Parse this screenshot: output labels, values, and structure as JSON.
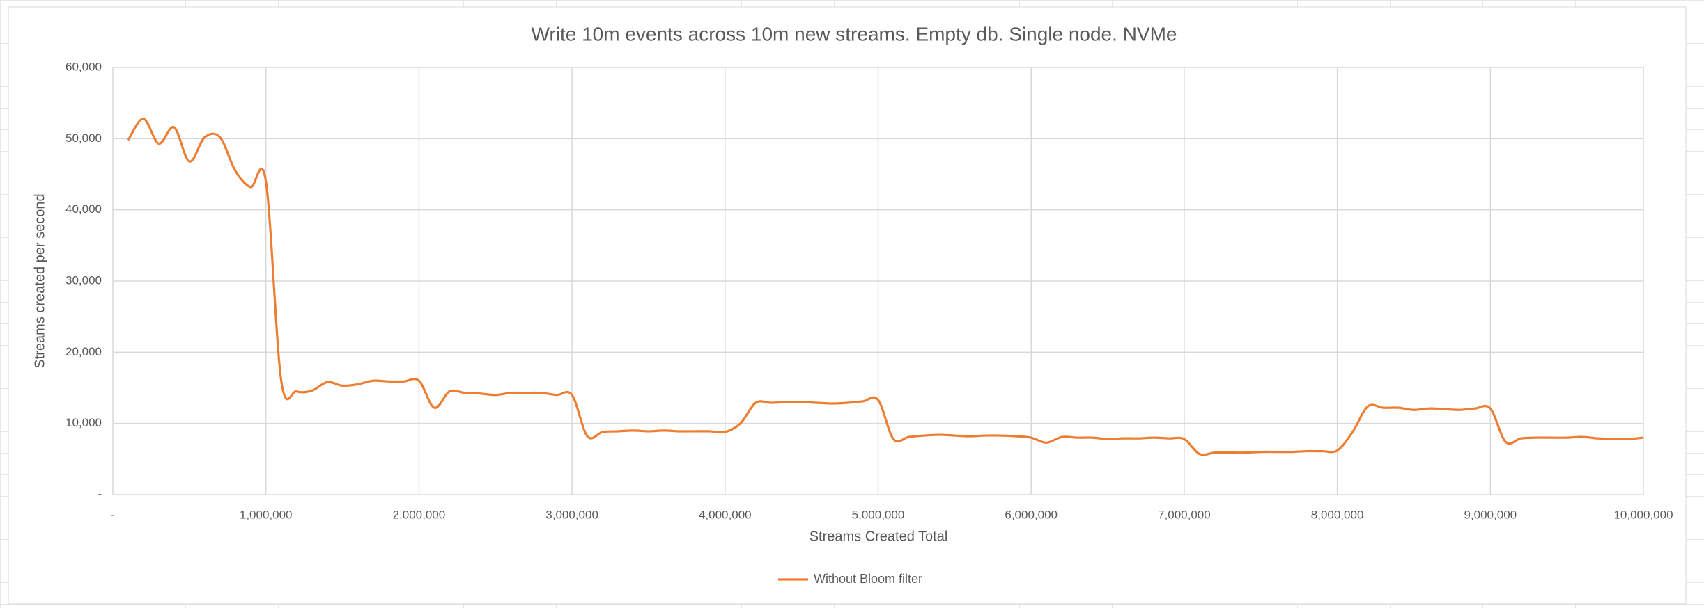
{
  "chart_data": {
    "type": "line",
    "title": "Write 10m events across 10m new streams. Empty db. Single node. NVMe",
    "x_label": "Streams Created Total",
    "y_label": "Streams created per second",
    "x": [
      100000,
      200000,
      300000,
      400000,
      500000,
      600000,
      700000,
      800000,
      900000,
      1000000,
      1100000,
      1200000,
      1300000,
      1400000,
      1500000,
      1600000,
      1700000,
      1800000,
      1900000,
      2000000,
      2100000,
      2200000,
      2300000,
      2400000,
      2500000,
      2600000,
      2700000,
      2800000,
      2900000,
      3000000,
      3100000,
      3200000,
      3300000,
      3400000,
      3500000,
      3600000,
      3700000,
      3800000,
      3900000,
      4000000,
      4100000,
      4200000,
      4300000,
      4400000,
      4500000,
      4600000,
      4700000,
      4800000,
      4900000,
      5000000,
      5100000,
      5200000,
      5300000,
      5400000,
      5500000,
      5600000,
      5700000,
      5800000,
      5900000,
      6000000,
      6100000,
      6200000,
      6300000,
      6400000,
      6500000,
      6600000,
      6700000,
      6800000,
      6900000,
      7000000,
      7100000,
      7200000,
      7300000,
      7400000,
      7500000,
      7600000,
      7700000,
      7800000,
      7900000,
      8000000,
      8100000,
      8200000,
      8300000,
      8400000,
      8500000,
      8600000,
      8700000,
      8800000,
      8900000,
      9000000,
      9100000,
      9200000,
      9300000,
      9400000,
      9500000,
      9600000,
      9700000,
      9800000,
      9900000,
      10000000
    ],
    "series": [
      {
        "name": "Without Bloom filter",
        "color": "#ed7d31",
        "values": [
          49800,
          52800,
          49300,
          51600,
          46800,
          50200,
          50200,
          45500,
          43200,
          44000,
          16000,
          14500,
          14600,
          15800,
          15300,
          15500,
          16000,
          15900,
          15900,
          16000,
          12200,
          14500,
          14300,
          14200,
          14000,
          14300,
          14300,
          14300,
          14000,
          14000,
          8200,
          8800,
          8900,
          9000,
          8900,
          9000,
          8900,
          8900,
          8900,
          8800,
          10000,
          12900,
          12900,
          13000,
          13000,
          12900,
          12800,
          12900,
          13100,
          13300,
          7800,
          8100,
          8300,
          8400,
          8300,
          8200,
          8300,
          8300,
          8200,
          8000,
          7300,
          8100,
          8000,
          8000,
          7800,
          7900,
          7900,
          8000,
          7900,
          7800,
          5700,
          5900,
          5900,
          5900,
          6000,
          6000,
          6000,
          6100,
          6100,
          6200,
          8800,
          12400,
          12200,
          12200,
          11900,
          12100,
          12000,
          11900,
          12100,
          12100,
          7400,
          7900,
          8000,
          8000,
          8000,
          8100,
          7900,
          7800,
          7800,
          8000
        ]
      }
    ],
    "xlim": [
      0,
      10000000
    ],
    "xticks": [
      {
        "value": 0,
        "label": "-"
      },
      {
        "value": 1000000,
        "label": "1,000,000"
      },
      {
        "value": 2000000,
        "label": "2,000,000"
      },
      {
        "value": 3000000,
        "label": "3,000,000"
      },
      {
        "value": 4000000,
        "label": "4,000,000"
      },
      {
        "value": 5000000,
        "label": "5,000,000"
      },
      {
        "value": 6000000,
        "label": "6,000,000"
      },
      {
        "value": 7000000,
        "label": "7,000,000"
      },
      {
        "value": 8000000,
        "label": "8,000,000"
      },
      {
        "value": 9000000,
        "label": "9,000,000"
      },
      {
        "value": 10000000,
        "label": "10,000,000"
      }
    ],
    "ylim": [
      0,
      60000
    ],
    "yticks": [
      {
        "value": 0,
        "label": "-"
      },
      {
        "value": 10000,
        "label": "10,000"
      },
      {
        "value": 20000,
        "label": "20,000"
      },
      {
        "value": 30000,
        "label": "30,000"
      },
      {
        "value": 40000,
        "label": "40,000"
      },
      {
        "value": 50000,
        "label": "50,000"
      },
      {
        "value": 60000,
        "label": "60,000"
      }
    ],
    "grid": true,
    "legend": "bottom"
  }
}
